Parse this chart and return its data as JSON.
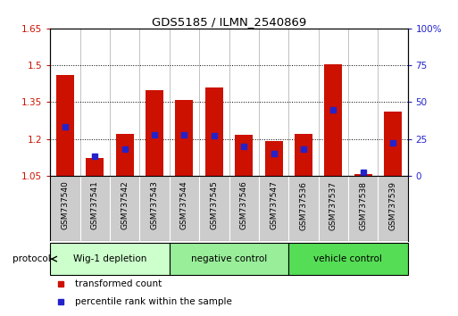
{
  "title": "GDS5185 / ILMN_2540869",
  "samples": [
    "GSM737540",
    "GSM737541",
    "GSM737542",
    "GSM737543",
    "GSM737544",
    "GSM737545",
    "GSM737546",
    "GSM737547",
    "GSM737536",
    "GSM737537",
    "GSM737538",
    "GSM737539"
  ],
  "transformed_count": [
    1.46,
    1.12,
    1.22,
    1.4,
    1.36,
    1.41,
    1.215,
    1.19,
    1.22,
    1.505,
    1.055,
    1.31
  ],
  "percentile_rank": [
    33,
    13,
    18,
    28,
    28,
    27,
    20,
    15,
    18,
    45,
    2,
    22
  ],
  "ylim_left": [
    1.05,
    1.65
  ],
  "ylim_right": [
    0,
    100
  ],
  "yticks_left": [
    1.05,
    1.2,
    1.35,
    1.5,
    1.65
  ],
  "yticks_right": [
    0,
    25,
    50,
    75,
    100
  ],
  "ytick_labels_left": [
    "1.05",
    "1.2",
    "1.35",
    "1.5",
    "1.65"
  ],
  "ytick_labels_right": [
    "0",
    "25",
    "50",
    "75",
    "100%"
  ],
  "bar_color": "#cc1100",
  "percentile_color": "#2222cc",
  "groups": [
    {
      "label": "Wig-1 depletion",
      "start": 0,
      "end": 4,
      "color": "#ccffcc"
    },
    {
      "label": "negative control",
      "start": 4,
      "end": 8,
      "color": "#99ee99"
    },
    {
      "label": "vehicle control",
      "start": 8,
      "end": 12,
      "color": "#55dd55"
    }
  ],
  "protocol_label": "protocol",
  "legend": [
    {
      "label": "transformed count",
      "color": "#cc1100"
    },
    {
      "label": "percentile rank within the sample",
      "color": "#2222cc"
    }
  ],
  "xtick_bg": "#cccccc",
  "bar_width": 0.6
}
